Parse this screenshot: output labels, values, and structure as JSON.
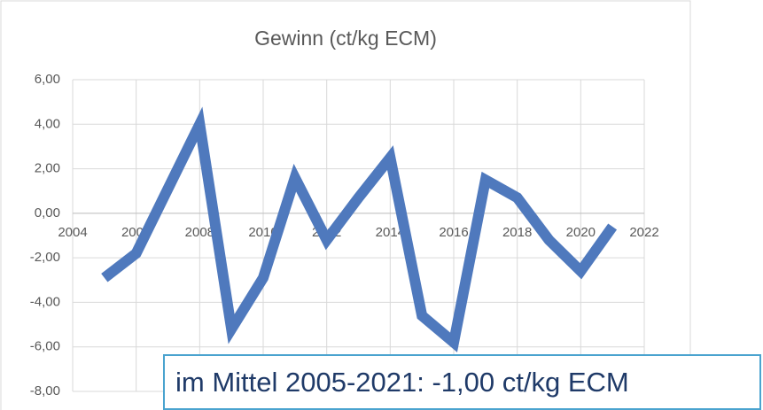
{
  "chart_data": {
    "type": "line",
    "title": "Gewinn (ct/kg ECM)",
    "x": [
      2005,
      2006,
      2007,
      2008,
      2009,
      2010,
      2011,
      2012,
      2013,
      2014,
      2015,
      2016,
      2017,
      2018,
      2019,
      2020,
      2021
    ],
    "series": [
      {
        "name": "Gewinn",
        "color": "#4f79bd",
        "values": [
          -2.9,
          -1.8,
          1.1,
          4.0,
          -5.2,
          -2.9,
          1.6,
          -1.2,
          0.7,
          2.5,
          -4.6,
          -5.8,
          1.5,
          0.7,
          -1.2,
          -2.6,
          -0.6
        ]
      }
    ],
    "xlim": [
      2004,
      2022
    ],
    "xticks": [
      2004,
      2006,
      2008,
      2010,
      2012,
      2014,
      2016,
      2018,
      2020,
      2022
    ],
    "ylim": [
      -8,
      6
    ],
    "yticks": [
      {
        "value": -8,
        "label": "-8,00"
      },
      {
        "value": -6,
        "label": "-6,00"
      },
      {
        "value": -4,
        "label": "-4,00"
      },
      {
        "value": -2,
        "label": "-2,00"
      },
      {
        "value": 0,
        "label": "0,00"
      },
      {
        "value": 2,
        "label": "2,00"
      },
      {
        "value": 4,
        "label": "4,00"
      },
      {
        "value": 6,
        "label": "6,00"
      }
    ],
    "grid": true,
    "annotation": "im Mittel 2005-2021: -1,00 ct/kg ECM"
  }
}
